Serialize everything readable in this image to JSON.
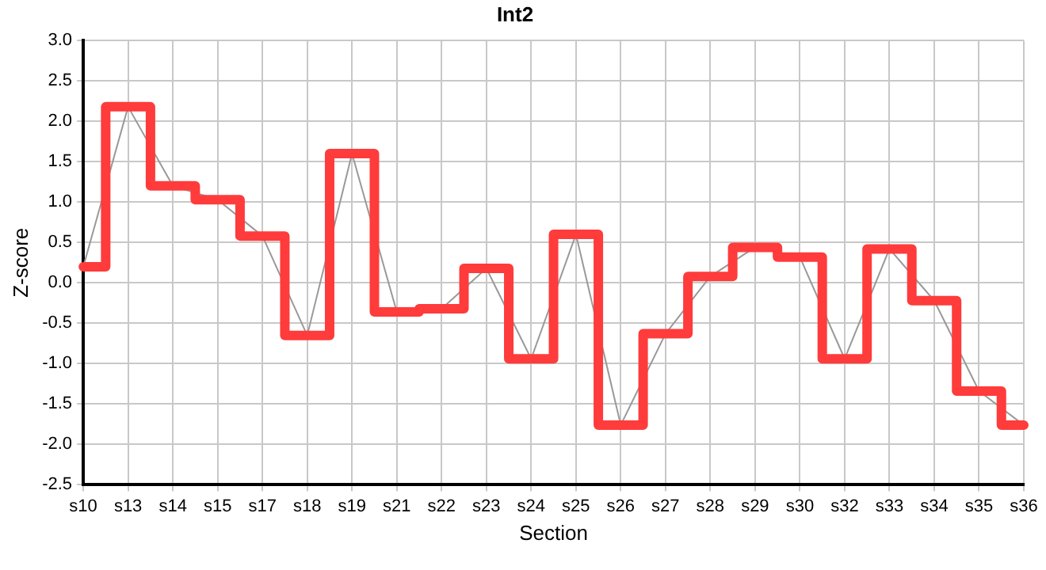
{
  "chart_data": {
    "type": "line",
    "title": "Int2",
    "xlabel": "Section",
    "ylabel": "Z-score",
    "categories": [
      "s10",
      "s13",
      "s14",
      "s15",
      "s17",
      "s18",
      "s19",
      "s21",
      "s22",
      "s23",
      "s24",
      "s25",
      "s26",
      "s27",
      "s28",
      "s29",
      "s30",
      "s32",
      "s33",
      "s34",
      "s35",
      "s36"
    ],
    "series": [
      {
        "type": "line",
        "color": "#999999",
        "values": [
          0.2,
          2.18,
          1.2,
          1.03,
          0.58,
          -0.65,
          1.6,
          -0.36,
          -0.32,
          0.18,
          -0.94,
          0.6,
          -1.76,
          -0.63,
          0.08,
          0.44,
          0.32,
          -0.94,
          0.42,
          -0.22,
          -1.34,
          -1.76
        ]
      },
      {
        "type": "step",
        "color": "#ff3b3b",
        "values": [
          0.2,
          2.18,
          1.2,
          1.03,
          0.58,
          -0.65,
          1.6,
          -0.36,
          -0.32,
          0.18,
          -0.94,
          0.6,
          -1.76,
          -0.63,
          0.08,
          0.44,
          0.32,
          -0.94,
          0.42,
          -0.22,
          -1.34,
          -1.76
        ]
      }
    ],
    "ylim": [
      -2.5,
      3.0
    ],
    "yticks": [
      {
        "value": -2.5,
        "label": "-2.5"
      },
      {
        "value": -2,
        "label": "-2.0"
      },
      {
        "value": -1.5,
        "label": "-1.5"
      },
      {
        "value": -1,
        "label": "-1.0"
      },
      {
        "value": -0.5,
        "label": "-0.5"
      },
      {
        "value": 0,
        "label": "0.0"
      },
      {
        "value": 0.5,
        "label": "0.5"
      },
      {
        "value": 1,
        "label": "1.0"
      },
      {
        "value": 1.5,
        "label": "1.5"
      },
      {
        "value": 2,
        "label": "2.0"
      },
      {
        "value": 2.5,
        "label": "2.5"
      },
      {
        "value": 3,
        "label": "3.0"
      }
    ],
    "grid": true,
    "legend": false
  }
}
